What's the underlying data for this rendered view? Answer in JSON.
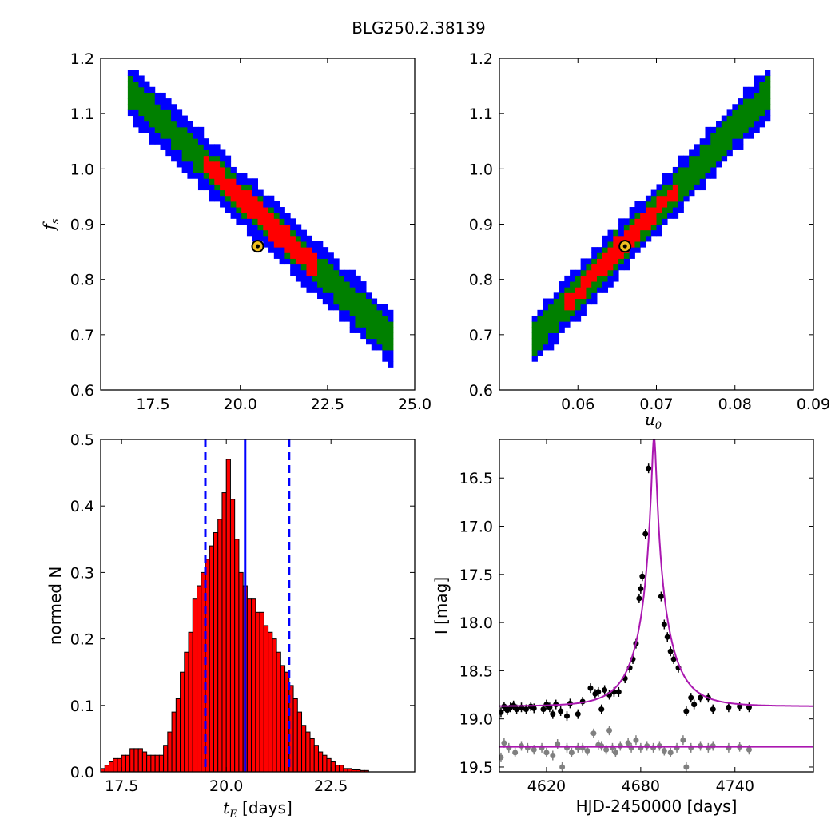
{
  "figure": {
    "title": "BLG250.2.38139"
  },
  "chart_data": [
    {
      "id": "tl",
      "type": "heatmap",
      "xlim": [
        16.0,
        25.0
      ],
      "ylim": [
        0.6,
        1.2
      ],
      "xticks": [
        "17.5",
        "20.0",
        "22.5",
        "25.0"
      ],
      "yticks": [
        "0.6",
        "0.7",
        "0.8",
        "0.9",
        "1.0",
        "1.1",
        "1.2"
      ],
      "ylabel": "f",
      "ylabel_sub": "s",
      "xlabel": "",
      "ridge": [
        [
          17.0,
          1.13
        ],
        [
          24.3,
          0.695
        ]
      ],
      "widths": {
        "blue": 0.05,
        "green": 0.028,
        "red_start": 19.0,
        "red_end": 22.2,
        "red_width": 0.025
      },
      "best_fit": [
        20.5,
        0.86
      ],
      "colors": {
        "blue": "#0000ff",
        "green": "#008000",
        "red": "#ff0000",
        "marker_fill": "#f0c020"
      }
    },
    {
      "id": "tr",
      "type": "heatmap",
      "xlim": [
        0.05,
        0.09
      ],
      "ylim": [
        0.6,
        1.2
      ],
      "xticks": [
        "0.06",
        "0.07",
        "0.08",
        "0.09"
      ],
      "yticks": [
        "0.6",
        "0.7",
        "0.8",
        "0.9",
        "1.0",
        "1.1",
        "1.2"
      ],
      "xlabel": "u",
      "xlabel_sub": "0",
      "ylabel": "",
      "ridge": [
        [
          0.0545,
          0.695
        ],
        [
          0.084,
          1.135
        ]
      ],
      "widths": {
        "blue": 0.045,
        "green": 0.03,
        "red_start": 0.058,
        "red_end": 0.0725,
        "red_width": 0.022
      },
      "best_fit": [
        0.066,
        0.86
      ],
      "colors": {
        "blue": "#0000ff",
        "green": "#008000",
        "red": "#ff0000",
        "marker_fill": "#f0c020"
      }
    },
    {
      "id": "bl",
      "type": "bar",
      "xlim": [
        17.0,
        24.5
      ],
      "ylim": [
        0.0,
        0.5
      ],
      "xticks": [
        "17.5",
        "20.0",
        "22.5"
      ],
      "yticks": [
        "0.0",
        "0.1",
        "0.2",
        "0.3",
        "0.4",
        "0.5"
      ],
      "xlabel_math": "t",
      "xlabel_sub": "E",
      "xlabel_rest": " [days]",
      "ylabel": "normed N",
      "bin_start": 17.0,
      "bin_width": 0.1,
      "values": [
        0.005,
        0.01,
        0.015,
        0.02,
        0.02,
        0.025,
        0.025,
        0.035,
        0.035,
        0.035,
        0.03,
        0.025,
        0.025,
        0.025,
        0.025,
        0.04,
        0.06,
        0.09,
        0.11,
        0.15,
        0.18,
        0.21,
        0.26,
        0.28,
        0.3,
        0.32,
        0.34,
        0.36,
        0.38,
        0.42,
        0.47,
        0.41,
        0.35,
        0.3,
        0.28,
        0.26,
        0.26,
        0.24,
        0.24,
        0.22,
        0.21,
        0.2,
        0.18,
        0.16,
        0.15,
        0.13,
        0.11,
        0.09,
        0.07,
        0.06,
        0.05,
        0.04,
        0.03,
        0.025,
        0.02,
        0.015,
        0.01,
        0.01,
        0.005,
        0.005,
        0.003,
        0.003,
        0.002,
        0.002
      ],
      "median": 20.45,
      "lower": 19.5,
      "upper": 21.5,
      "colors": {
        "bar": "#ff0000",
        "edge": "#000000",
        "line": "#0000ff"
      }
    },
    {
      "id": "br",
      "type": "scatter",
      "xlim": [
        4590,
        4790
      ],
      "ylim": [
        19.55,
        16.1
      ],
      "xticks": [
        "4620",
        "4680",
        "4740"
      ],
      "yticks": [
        "16.5",
        "17.0",
        "17.5",
        "18.0",
        "18.5",
        "19.0",
        "19.5"
      ],
      "xlabel": "HJD-2450000 [days]",
      "ylabel": "I [mag]",
      "model": {
        "t0": 4688.5,
        "tE": 20.5,
        "u0": 0.066,
        "fs": 0.86,
        "baseline": 18.87
      },
      "residual_level": 19.29,
      "points": [
        [
          4591,
          18.93
        ],
        [
          4593,
          18.87
        ],
        [
          4595,
          18.91
        ],
        [
          4597,
          18.88
        ],
        [
          4599,
          18.86
        ],
        [
          4601,
          18.9
        ],
        [
          4604,
          18.88
        ],
        [
          4607,
          18.9
        ],
        [
          4610,
          18.87
        ],
        [
          4612,
          18.89
        ],
        [
          4618,
          18.9
        ],
        [
          4620,
          18.85
        ],
        [
          4622,
          18.88
        ],
        [
          4624,
          18.95
        ],
        [
          4626,
          18.85
        ],
        [
          4629,
          18.92
        ],
        [
          4633,
          18.97
        ],
        [
          4635,
          18.84
        ],
        [
          4640,
          18.95
        ],
        [
          4643,
          18.82
        ],
        [
          4648,
          18.68
        ],
        [
          4651,
          18.74
        ],
        [
          4653,
          18.72
        ],
        [
          4655,
          18.9
        ],
        [
          4657,
          18.7
        ],
        [
          4660,
          18.75
        ],
        [
          4663,
          18.72
        ],
        [
          4666,
          18.72
        ],
        [
          4670,
          18.58
        ],
        [
          4673,
          18.47
        ],
        [
          4675,
          18.38
        ],
        [
          4677,
          18.22
        ],
        [
          4679,
          17.75
        ],
        [
          4680,
          17.65
        ],
        [
          4681,
          17.52
        ],
        [
          4683,
          17.08
        ],
        [
          4685,
          16.4
        ],
        [
          4687,
          16.05
        ],
        [
          4693,
          17.73
        ],
        [
          4695,
          18.02
        ],
        [
          4697,
          18.15
        ],
        [
          4699,
          18.3
        ],
        [
          4701,
          18.38
        ],
        [
          4704,
          18.47
        ],
        [
          4709,
          18.92
        ],
        [
          4712,
          18.78
        ],
        [
          4714,
          18.85
        ],
        [
          4718,
          18.78
        ],
        [
          4723,
          18.78
        ],
        [
          4726,
          18.9
        ],
        [
          4736,
          18.88
        ],
        [
          4743,
          18.87
        ],
        [
          4749,
          18.88
        ]
      ],
      "residuals": [
        [
          4591,
          19.4
        ],
        [
          4593,
          19.25
        ],
        [
          4596,
          19.3
        ],
        [
          4600,
          19.35
        ],
        [
          4604,
          19.28
        ],
        [
          4608,
          19.3
        ],
        [
          4612,
          19.32
        ],
        [
          4617,
          19.3
        ],
        [
          4620,
          19.35
        ],
        [
          4624,
          19.38
        ],
        [
          4627,
          19.26
        ],
        [
          4630,
          19.5
        ],
        [
          4633,
          19.3
        ],
        [
          4636,
          19.35
        ],
        [
          4640,
          19.3
        ],
        [
          4643,
          19.3
        ],
        [
          4646,
          19.33
        ],
        [
          4650,
          19.15
        ],
        [
          4653,
          19.27
        ],
        [
          4655,
          19.28
        ],
        [
          4658,
          19.32
        ],
        [
          4660,
          19.12
        ],
        [
          4662,
          19.3
        ],
        [
          4664,
          19.35
        ],
        [
          4667,
          19.28
        ],
        [
          4672,
          19.25
        ],
        [
          4674,
          19.3
        ],
        [
          4677,
          19.22
        ],
        [
          4680,
          19.3
        ],
        [
          4684,
          19.28
        ],
        [
          4688,
          19.3
        ],
        [
          4692,
          19.28
        ],
        [
          4695,
          19.33
        ],
        [
          4699,
          19.35
        ],
        [
          4703,
          19.3
        ],
        [
          4707,
          19.22
        ],
        [
          4709,
          19.5
        ],
        [
          4712,
          19.3
        ],
        [
          4718,
          19.28
        ],
        [
          4723,
          19.3
        ],
        [
          4726,
          19.28
        ],
        [
          4736,
          19.3
        ],
        [
          4743,
          19.29
        ],
        [
          4749,
          19.32
        ]
      ],
      "colors": {
        "data": "#000000",
        "residual": "#808080",
        "model": "#aa17b0"
      }
    }
  ]
}
